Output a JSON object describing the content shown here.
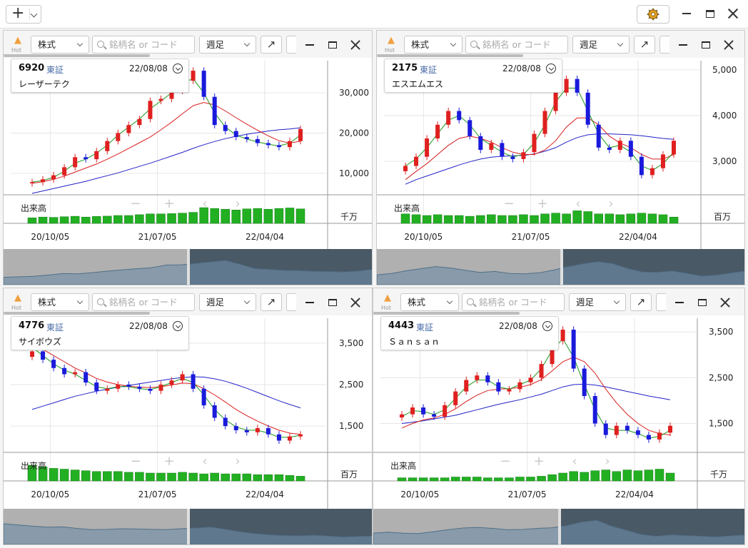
{
  "toolbar": {
    "add_symbol": "+",
    "gear_icon": "gear-icon"
  },
  "colors": {
    "up": "#e02020",
    "down": "#1a1adc",
    "ma_short": "#1a9a1a",
    "ma_mid": "#d81e1e",
    "ma_long": "#2222c8",
    "volume": "#22b022",
    "nav_dark": "#4a5966",
    "nav_light": "#b0b0b0"
  },
  "panels": [
    {
      "category": "株式",
      "search_placeholder": "銘柄名 or コード",
      "period": "週足",
      "hot_label": "Hot",
      "code": "6920",
      "market": "東証",
      "date": "22/08/08",
      "name": "レーザーテク",
      "y_ticks": [
        "30,000",
        "20,000",
        "10,000"
      ],
      "x_ticks": [
        "20/10/05",
        "21/07/05",
        "22/04/04"
      ],
      "volume_label": "出来高",
      "volume_unit": "千万"
    },
    {
      "category": "株式",
      "search_placeholder": "銘柄名 or コード",
      "period": "週足",
      "hot_label": "Hot",
      "code": "2175",
      "market": "東証",
      "date": "22/08/08",
      "name": "エスエムエス",
      "y_ticks": [
        "5,000",
        "4,000",
        "3,000"
      ],
      "x_ticks": [
        "20/10/05",
        "21/07/05",
        "22/04/04"
      ],
      "volume_label": "出来高",
      "volume_unit": "百万"
    },
    {
      "category": "株式",
      "search_placeholder": "銘柄名 or コード",
      "period": "週足",
      "hot_label": "Hot",
      "code": "4776",
      "market": "東証",
      "date": "22/08/08",
      "name": "サイボウズ",
      "y_ticks": [
        "3,500",
        "2,500",
        "1,500"
      ],
      "x_ticks": [
        "20/10/05",
        "21/07/05",
        "22/04/04"
      ],
      "volume_label": "出来高",
      "volume_unit": "百万"
    },
    {
      "category": "株式",
      "search_placeholder": "銘柄名 or コード",
      "period": "週足",
      "hot_label": "Hot",
      "code": "4443",
      "market": "東証",
      "date": "22/08/08",
      "name": "Ｓａｎｓａｎ",
      "y_ticks": [
        "3,500",
        "2,500",
        "1,500"
      ],
      "x_ticks": [
        "20/10/05",
        "21/07/05",
        "22/04/04"
      ],
      "volume_label": "出来高",
      "volume_unit": "千万"
    }
  ],
  "chart_data": [
    {
      "type": "candlestick",
      "title": "6920 レーザーテク",
      "x_ticks": [
        "20/10/05",
        "21/07/05",
        "22/04/04"
      ],
      "ylim": [
        5000,
        38000
      ],
      "close": [
        7800,
        8500,
        9500,
        11500,
        14000,
        13500,
        15500,
        18000,
        20000,
        22000,
        23500,
        28000,
        28500,
        30500,
        33000,
        35500,
        29000,
        22000,
        20500,
        19000,
        18500,
        17500,
        17000,
        16500,
        18000,
        21000
      ],
      "ma_short": [
        7800,
        8200,
        9000,
        10500,
        12500,
        13500,
        15000,
        17000,
        19500,
        21500,
        23500,
        26000,
        28000,
        30000,
        32500,
        33500,
        30000,
        25000,
        21500,
        19500,
        18500,
        17800,
        17200,
        16800,
        17500,
        19500
      ],
      "ma_mid": [
        7500,
        7900,
        8500,
        9300,
        10300,
        11300,
        12300,
        13500,
        14800,
        16200,
        17600,
        19000,
        20800,
        22700,
        24800,
        26800,
        27600,
        27000,
        25500,
        23800,
        22200,
        20700,
        19300,
        18100,
        17500,
        18000
      ],
      "ma_long": [
        5000,
        5600,
        6200,
        6800,
        7400,
        8000,
        8700,
        9400,
        10100,
        10900,
        11700,
        12500,
        13400,
        14300,
        15200,
        16200,
        17100,
        17900,
        18600,
        19200,
        19700,
        20100,
        20500,
        20800,
        21000,
        21300
      ],
      "volume": [
        0.35,
        0.4,
        0.38,
        0.42,
        0.45,
        0.4,
        0.44,
        0.46,
        0.5,
        0.5,
        0.55,
        0.6,
        0.6,
        0.62,
        0.65,
        0.7,
        1.0,
        0.95,
        0.9,
        0.85,
        0.92,
        0.95,
        0.9,
        0.95,
        0.98,
        0.92
      ]
    },
    {
      "type": "candlestick",
      "title": "2175 エスエムエス",
      "x_ticks": [
        "20/10/05",
        "21/07/05",
        "22/04/04"
      ],
      "ylim": [
        2300,
        5200
      ],
      "close": [
        2900,
        3100,
        3500,
        3800,
        4100,
        3900,
        3550,
        3250,
        3400,
        3100,
        3050,
        3200,
        3600,
        4100,
        4500,
        4800,
        4500,
        3800,
        3300,
        3250,
        3450,
        3100,
        2700,
        2850,
        3150,
        3450
      ],
      "ma_short": [
        2900,
        3050,
        3300,
        3600,
        3900,
        4000,
        3800,
        3500,
        3350,
        3200,
        3100,
        3150,
        3400,
        3800,
        4300,
        4600,
        4600,
        4100,
        3600,
        3300,
        3350,
        3200,
        2900,
        2800,
        2950,
        3200
      ],
      "ma_mid": [
        2600,
        2780,
        2950,
        3150,
        3350,
        3500,
        3550,
        3500,
        3420,
        3300,
        3200,
        3150,
        3150,
        3250,
        3450,
        3750,
        3950,
        3950,
        3800,
        3550,
        3400,
        3300,
        3150,
        3050,
        3050,
        3150
      ],
      "ma_long": [
        2500,
        2600,
        2680,
        2760,
        2840,
        2920,
        2990,
        3050,
        3090,
        3110,
        3120,
        3130,
        3160,
        3220,
        3300,
        3420,
        3520,
        3580,
        3600,
        3600,
        3590,
        3580,
        3560,
        3530,
        3500,
        3480
      ],
      "volume": [
        0.6,
        0.55,
        0.5,
        0.55,
        0.5,
        0.5,
        0.45,
        0.5,
        0.55,
        0.5,
        0.5,
        0.55,
        0.5,
        0.6,
        0.65,
        0.6,
        0.8,
        0.75,
        0.6,
        0.6,
        0.55,
        0.6,
        0.65,
        0.6,
        0.55,
        0.4
      ]
    },
    {
      "type": "candlestick",
      "title": "4776 サイボウズ",
      "x_ticks": [
        "20/10/05",
        "21/07/05",
        "22/04/04"
      ],
      "ylim": [
        900,
        4100
      ],
      "close": [
        3300,
        3100,
        2900,
        2750,
        2800,
        2550,
        2350,
        2400,
        2500,
        2450,
        2400,
        2350,
        2500,
        2600,
        2750,
        2400,
        2000,
        1700,
        1500,
        1400,
        1350,
        1450,
        1300,
        1150,
        1250,
        1300
      ],
      "ma_short": [
        3400,
        3200,
        3000,
        2850,
        2750,
        2600,
        2450,
        2400,
        2450,
        2450,
        2400,
        2380,
        2450,
        2550,
        2650,
        2550,
        2250,
        1900,
        1650,
        1480,
        1400,
        1400,
        1330,
        1230,
        1230,
        1280
      ],
      "ma_mid": [
        3500,
        3350,
        3200,
        3050,
        2900,
        2780,
        2650,
        2560,
        2500,
        2460,
        2440,
        2430,
        2450,
        2490,
        2540,
        2520,
        2400,
        2250,
        2080,
        1900,
        1750,
        1620,
        1500,
        1400,
        1330,
        1300
      ],
      "ma_long": [
        1900,
        1980,
        2060,
        2140,
        2220,
        2280,
        2340,
        2390,
        2440,
        2480,
        2520,
        2560,
        2600,
        2640,
        2670,
        2690,
        2680,
        2640,
        2580,
        2500,
        2410,
        2310,
        2210,
        2110,
        2020,
        1940
      ],
      "volume": [
        1.0,
        0.9,
        0.8,
        0.75,
        0.7,
        0.65,
        0.6,
        0.6,
        0.6,
        0.55,
        0.55,
        0.5,
        0.5,
        0.5,
        0.55,
        0.5,
        0.45,
        0.5,
        0.45,
        0.45,
        0.45,
        0.4,
        0.4,
        0.4,
        0.35,
        0.3
      ]
    },
    {
      "type": "candlestick",
      "title": "4443 Ｓａｎｓａｎ",
      "x_ticks": [
        "20/10/05",
        "21/07/05",
        "22/04/04"
      ],
      "ylim": [
        900,
        3800
      ],
      "close": [
        1700,
        1850,
        1700,
        1650,
        1900,
        2200,
        2450,
        2550,
        2400,
        2200,
        2250,
        2400,
        2500,
        2800,
        3300,
        3550,
        2700,
        2100,
        1500,
        1250,
        1450,
        1350,
        1250,
        1150,
        1300,
        1450
      ],
      "ma_short": [
        1650,
        1780,
        1760,
        1700,
        1800,
        2050,
        2300,
        2450,
        2450,
        2300,
        2250,
        2350,
        2450,
        2700,
        3100,
        3350,
        2950,
        2350,
        1800,
        1400,
        1350,
        1350,
        1280,
        1180,
        1220,
        1350
      ],
      "ma_mid": [
        1400,
        1500,
        1580,
        1620,
        1700,
        1820,
        1980,
        2120,
        2220,
        2250,
        2260,
        2290,
        2350,
        2460,
        2650,
        2850,
        2950,
        2850,
        2600,
        2250,
        1950,
        1700,
        1500,
        1350,
        1280,
        1250
      ],
      "ma_long": [
        1500,
        1530,
        1560,
        1600,
        1640,
        1680,
        1740,
        1800,
        1860,
        1920,
        1970,
        2020,
        2080,
        2140,
        2220,
        2300,
        2350,
        2360,
        2340,
        2300,
        2250,
        2200,
        2150,
        2100,
        2060,
        2020
      ],
      "volume": [
        0.2,
        0.2,
        0.2,
        0.2,
        0.2,
        0.25,
        0.25,
        0.25,
        0.2,
        0.2,
        0.2,
        0.25,
        0.25,
        0.3,
        0.4,
        0.5,
        0.6,
        0.55,
        0.65,
        0.7,
        0.6,
        0.7,
        0.65,
        0.7,
        0.75,
        0.5
      ]
    }
  ]
}
